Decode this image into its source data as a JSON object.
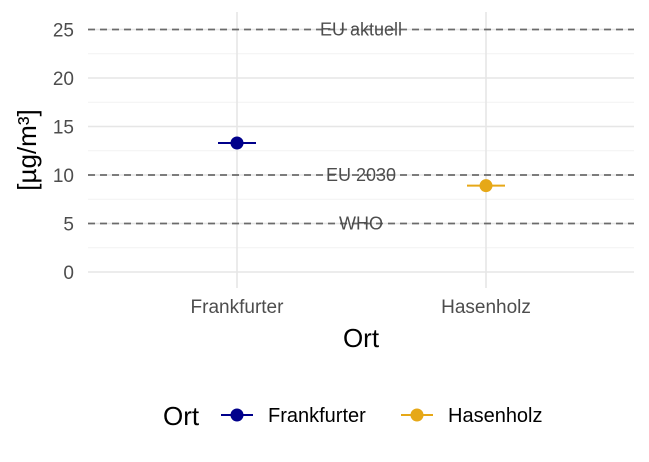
{
  "chart_data": {
    "type": "scatter",
    "categories": [
      "Frankfurter",
      "Hasenholz"
    ],
    "series": [
      {
        "name": "Frankfurter",
        "x": "Frankfurter",
        "y": 13.3,
        "color": "#00008B"
      },
      {
        "name": "Hasenholz",
        "x": "Hasenholz",
        "y": 8.9,
        "color": "#E6A817"
      }
    ],
    "reference_lines": [
      {
        "label": "EU aktuell",
        "y": 25
      },
      {
        "label": "EU 2030",
        "y": 10
      },
      {
        "label": "WHO",
        "y": 5
      }
    ],
    "xlabel": "Ort",
    "ylabel": "[µg/m³]",
    "ylim": [
      0,
      25
    ],
    "yticks": [
      0,
      5,
      10,
      15,
      20,
      25
    ],
    "grid": true,
    "legend": {
      "title": "Ort",
      "position": "bottom"
    },
    "colors": {
      "reference": "#6b6b6b",
      "grid_major": "#e6e6e6",
      "grid_minor": "#f2f2f2"
    }
  }
}
